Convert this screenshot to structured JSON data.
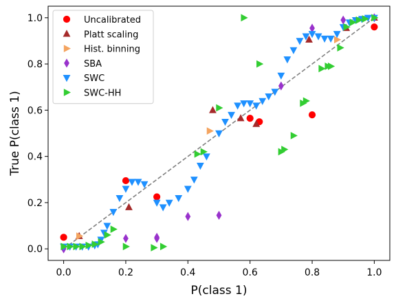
{
  "chart_data": {
    "type": "scatter",
    "xlabel": "P(class 1)",
    "ylabel": "True P(class 1)",
    "xlim": [
      -0.05,
      1.05
    ],
    "ylim": [
      -0.05,
      1.05
    ],
    "xticks": [
      "0.0",
      "0.2",
      "0.4",
      "0.6",
      "0.8",
      "1.0"
    ],
    "yticks": [
      "0.0",
      "0.2",
      "0.4",
      "0.6",
      "0.8",
      "1.0"
    ],
    "xtick_values": [
      0,
      0.2,
      0.4,
      0.6,
      0.8,
      1.0
    ],
    "ytick_values": [
      0,
      0.2,
      0.4,
      0.6,
      0.8,
      1.0
    ],
    "grid": false,
    "legend_position": "upper-left",
    "reference_line": {
      "x": [
        0,
        1
      ],
      "y": [
        0,
        1
      ],
      "style": "dashed",
      "color": "#808080"
    },
    "series": [
      {
        "name": "Uncalibrated",
        "marker": "circle",
        "color": "#ff0000",
        "x": [
          0.0,
          0.2,
          0.3,
          0.6,
          0.63,
          0.8,
          1.0
        ],
        "y": [
          0.05,
          0.295,
          0.225,
          0.565,
          0.55,
          0.58,
          0.96
        ]
      },
      {
        "name": "Platt scaling",
        "marker": "triangle-up",
        "color": "#a52a2a",
        "x": [
          0.05,
          0.21,
          0.48,
          0.57,
          0.62,
          0.79,
          0.91,
          1.0
        ],
        "y": [
          0.055,
          0.18,
          0.6,
          0.565,
          0.54,
          0.905,
          0.955,
          1.0
        ]
      },
      {
        "name": "Hist. binning",
        "marker": "triangle-right",
        "color": "#f4a460",
        "x": [
          0.05,
          0.47,
          0.88
        ],
        "y": [
          0.055,
          0.51,
          0.905
        ]
      },
      {
        "name": "SBA",
        "marker": "diamond",
        "color": "#9932cc",
        "x": [
          0.0,
          0.2,
          0.3,
          0.3,
          0.4,
          0.5,
          0.7,
          0.8,
          0.9,
          1.0
        ],
        "y": [
          0.0,
          0.045,
          0.05,
          0.045,
          0.14,
          0.145,
          0.705,
          0.955,
          0.99,
          1.0
        ]
      },
      {
        "name": "SWC",
        "marker": "triangle-down",
        "color": "#1e90ff",
        "x": [
          0.0,
          0.02,
          0.04,
          0.06,
          0.08,
          0.1,
          0.11,
          0.12,
          0.13,
          0.14,
          0.16,
          0.18,
          0.2,
          0.22,
          0.24,
          0.26,
          0.3,
          0.32,
          0.34,
          0.37,
          0.4,
          0.42,
          0.44,
          0.46,
          0.5,
          0.52,
          0.54,
          0.56,
          0.58,
          0.6,
          0.62,
          0.64,
          0.66,
          0.68,
          0.7,
          0.72,
          0.74,
          0.76,
          0.78,
          0.8,
          0.82,
          0.84,
          0.86,
          0.88,
          0.9,
          0.92,
          0.94,
          0.96,
          0.98,
          1.0
        ],
        "y": [
          0.01,
          0.01,
          0.01,
          0.01,
          0.01,
          0.015,
          0.02,
          0.04,
          0.07,
          0.1,
          0.16,
          0.22,
          0.26,
          0.29,
          0.29,
          0.28,
          0.2,
          0.18,
          0.2,
          0.22,
          0.26,
          0.3,
          0.36,
          0.4,
          0.5,
          0.55,
          0.58,
          0.62,
          0.63,
          0.63,
          0.62,
          0.64,
          0.66,
          0.68,
          0.75,
          0.82,
          0.86,
          0.9,
          0.92,
          0.93,
          0.92,
          0.91,
          0.91,
          0.93,
          0.96,
          0.98,
          0.99,
          0.995,
          1.0,
          1.0
        ]
      },
      {
        "name": "SWC-HH",
        "marker": "triangle-right",
        "color": "#32cd32",
        "x": [
          0.0,
          0.02,
          0.04,
          0.06,
          0.08,
          0.1,
          0.12,
          0.14,
          0.16,
          0.2,
          0.29,
          0.32,
          0.43,
          0.45,
          0.5,
          0.58,
          0.63,
          0.7,
          0.71,
          0.74,
          0.77,
          0.78,
          0.83,
          0.85,
          0.86,
          0.89,
          0.91,
          0.93,
          0.95,
          0.97,
          1.0
        ],
        "y": [
          0.01,
          0.01,
          0.01,
          0.01,
          0.015,
          0.02,
          0.03,
          0.06,
          0.085,
          0.01,
          0.005,
          0.01,
          0.41,
          0.42,
          0.61,
          1.0,
          0.8,
          0.42,
          0.43,
          0.49,
          0.63,
          0.64,
          0.78,
          0.79,
          0.79,
          0.87,
          0.96,
          0.98,
          0.99,
          0.995,
          1.0
        ]
      }
    ]
  }
}
